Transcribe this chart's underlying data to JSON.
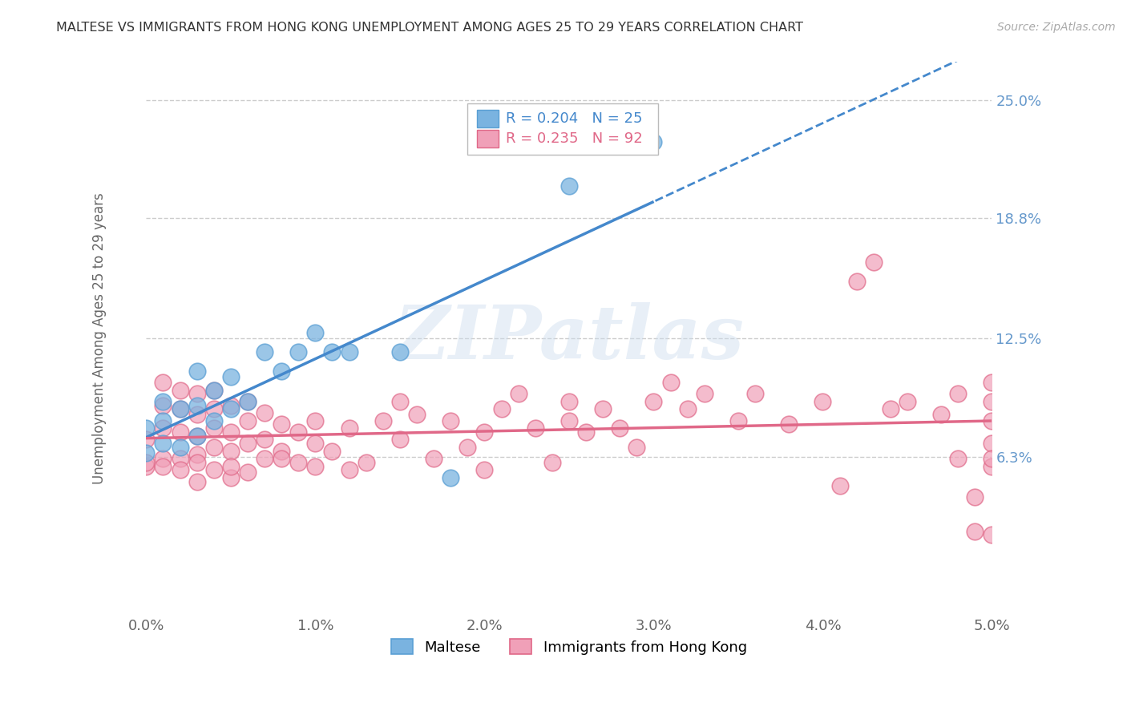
{
  "title": "MALTESE VS IMMIGRANTS FROM HONG KONG UNEMPLOYMENT AMONG AGES 25 TO 29 YEARS CORRELATION CHART",
  "source": "Source: ZipAtlas.com",
  "ylabel": "Unemployment Among Ages 25 to 29 years",
  "xlim": [
    0.0,
    0.05
  ],
  "ylim": [
    -0.02,
    0.27
  ],
  "xticks": [
    0.0,
    0.01,
    0.02,
    0.03,
    0.04,
    0.05
  ],
  "xticklabels": [
    "0.0%",
    "1.0%",
    "2.0%",
    "3.0%",
    "4.0%",
    "5.0%"
  ],
  "ytick_labels_right": [
    "25.0%",
    "18.8%",
    "12.5%",
    "6.3%"
  ],
  "ytick_values_right": [
    0.25,
    0.188,
    0.125,
    0.063
  ],
  "legend_R_maltese": "R = 0.204",
  "legend_N_maltese": "N = 25",
  "legend_R_hk": "R = 0.235",
  "legend_N_hk": "N = 92",
  "maltese_color": "#7ab3e0",
  "maltese_edge": "#5a9fd4",
  "hk_color": "#f0a0b8",
  "hk_edge": "#e06888",
  "trend_blue": "#4488cc",
  "trend_pink": "#e06888",
  "watermark_text": "ZIPatlas",
  "background_color": "#ffffff",
  "grid_color": "#cccccc",
  "maltese_x": [
    0.0,
    0.0,
    0.001,
    0.001,
    0.001,
    0.002,
    0.002,
    0.003,
    0.003,
    0.003,
    0.004,
    0.004,
    0.005,
    0.005,
    0.006,
    0.007,
    0.008,
    0.009,
    0.01,
    0.011,
    0.012,
    0.015,
    0.018,
    0.025,
    0.03
  ],
  "maltese_y": [
    0.065,
    0.078,
    0.07,
    0.082,
    0.092,
    0.068,
    0.088,
    0.074,
    0.09,
    0.108,
    0.082,
    0.098,
    0.088,
    0.105,
    0.092,
    0.118,
    0.108,
    0.118,
    0.128,
    0.118,
    0.118,
    0.118,
    0.052,
    0.205,
    0.228
  ],
  "hk_x": [
    0.0,
    0.0,
    0.0,
    0.001,
    0.001,
    0.001,
    0.001,
    0.001,
    0.002,
    0.002,
    0.002,
    0.002,
    0.002,
    0.003,
    0.003,
    0.003,
    0.003,
    0.003,
    0.003,
    0.004,
    0.004,
    0.004,
    0.004,
    0.004,
    0.005,
    0.005,
    0.005,
    0.005,
    0.005,
    0.006,
    0.006,
    0.006,
    0.006,
    0.007,
    0.007,
    0.007,
    0.008,
    0.008,
    0.008,
    0.009,
    0.009,
    0.01,
    0.01,
    0.01,
    0.011,
    0.012,
    0.012,
    0.013,
    0.014,
    0.015,
    0.015,
    0.016,
    0.017,
    0.018,
    0.019,
    0.02,
    0.02,
    0.021,
    0.022,
    0.023,
    0.024,
    0.025,
    0.025,
    0.026,
    0.027,
    0.028,
    0.029,
    0.03,
    0.031,
    0.032,
    0.033,
    0.035,
    0.036,
    0.038,
    0.04,
    0.041,
    0.042,
    0.043,
    0.044,
    0.045,
    0.047,
    0.048,
    0.048,
    0.049,
    0.049,
    0.05,
    0.05,
    0.05,
    0.05,
    0.05,
    0.05,
    0.05
  ],
  "hk_y": [
    0.058,
    0.072,
    0.06,
    0.062,
    0.078,
    0.09,
    0.102,
    0.058,
    0.062,
    0.076,
    0.088,
    0.098,
    0.056,
    0.05,
    0.064,
    0.074,
    0.085,
    0.096,
    0.06,
    0.056,
    0.068,
    0.078,
    0.088,
    0.098,
    0.052,
    0.066,
    0.076,
    0.09,
    0.058,
    0.055,
    0.07,
    0.082,
    0.092,
    0.062,
    0.072,
    0.086,
    0.066,
    0.08,
    0.062,
    0.06,
    0.076,
    0.07,
    0.082,
    0.058,
    0.066,
    0.078,
    0.056,
    0.06,
    0.082,
    0.072,
    0.092,
    0.085,
    0.062,
    0.082,
    0.068,
    0.076,
    0.056,
    0.088,
    0.096,
    0.078,
    0.06,
    0.082,
    0.092,
    0.076,
    0.088,
    0.078,
    0.068,
    0.092,
    0.102,
    0.088,
    0.096,
    0.082,
    0.096,
    0.08,
    0.092,
    0.048,
    0.155,
    0.165,
    0.088,
    0.092,
    0.085,
    0.096,
    0.062,
    0.042,
    0.024,
    0.082,
    0.092,
    0.102,
    0.058,
    0.07,
    0.062,
    0.022
  ]
}
